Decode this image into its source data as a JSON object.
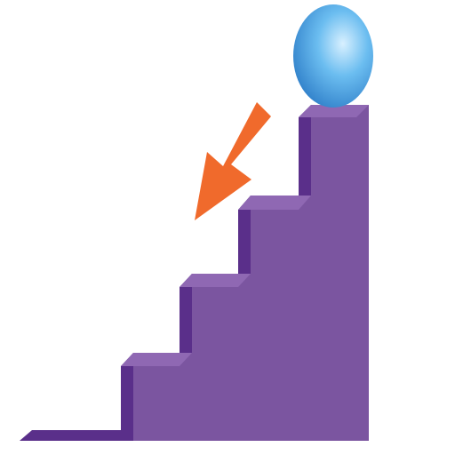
{
  "diagram": {
    "step_count": 4,
    "colors": {
      "staircase_front": "#7b55a0",
      "staircase_riser_shadow": "#5a2f8a",
      "staircase_top_highlight": "#8f68b3",
      "ball_light": "#d8f0ff",
      "ball_mid": "#6bbdf0",
      "ball_dark": "#2f7fc9",
      "arrow": "#f06a2c",
      "background": "#ffffff"
    },
    "icons": {
      "ball": "ball-icon",
      "arrow": "arrow-down-left-icon"
    }
  }
}
